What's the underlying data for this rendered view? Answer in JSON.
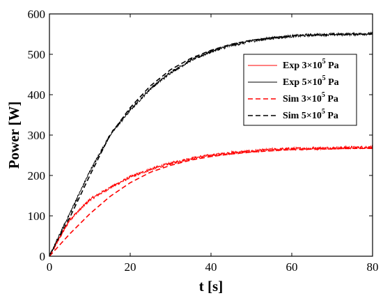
{
  "chart_data": {
    "type": "line",
    "title": "",
    "xlabel": "t [s]",
    "ylabel": "Power [W]",
    "xlim": [
      0,
      80
    ],
    "ylim": [
      0,
      600
    ],
    "xticks": [
      0,
      20,
      40,
      60,
      80
    ],
    "yticks": [
      0,
      100,
      200,
      300,
      400,
      500,
      600
    ],
    "x_tick_labels": [
      "0",
      "20",
      "40",
      "60",
      "80"
    ],
    "y_tick_labels": [
      "0",
      "100",
      "200",
      "300",
      "400",
      "500",
      "600"
    ],
    "grid": false,
    "legend_position": "top-right",
    "x": [
      0,
      5,
      10,
      15,
      20,
      25,
      30,
      35,
      40,
      45,
      50,
      55,
      60,
      65,
      70,
      75,
      80
    ],
    "series": [
      {
        "name": "Exp 3×10^5 Pa",
        "label_parts": {
          "base": "Exp 3×10",
          "sup": "5",
          "unit": " Pa"
        },
        "color": "#ff0000",
        "line_style": "solid",
        "noisy": true,
        "values": [
          0,
          90,
          140,
          170,
          196,
          215,
          230,
          242,
          250,
          256,
          260,
          264,
          266,
          267,
          268,
          269,
          270
        ]
      },
      {
        "name": "Exp 5×10^5 Pa",
        "label_parts": {
          "base": "Exp 5×10",
          "sup": "5",
          "unit": " Pa"
        },
        "color": "#000000",
        "line_style": "solid",
        "noisy": true,
        "values": [
          0,
          105,
          210,
          300,
          362,
          415,
          455,
          485,
          507,
          522,
          533,
          540,
          545,
          548,
          549,
          550,
          551
        ]
      },
      {
        "name": "Sim 3×10^5 Pa",
        "label_parts": {
          "base": "Sim 3×10",
          "sup": "5",
          "unit": " Pa"
        },
        "color": "#ff0000",
        "line_style": "dashed",
        "noisy": false,
        "values": [
          0,
          55,
          105,
          148,
          182,
          208,
          225,
          238,
          247,
          253,
          258,
          261,
          264,
          265,
          266,
          267,
          267
        ]
      },
      {
        "name": "Sim 5×10^5 Pa",
        "label_parts": {
          "base": "Sim 5×10",
          "sup": "5",
          "unit": " Pa"
        },
        "color": "#000000",
        "line_style": "dashed",
        "noisy": false,
        "values": [
          0,
          95,
          200,
          300,
          368,
          422,
          462,
          490,
          510,
          525,
          535,
          541,
          546,
          548,
          549,
          550,
          550
        ]
      }
    ]
  }
}
